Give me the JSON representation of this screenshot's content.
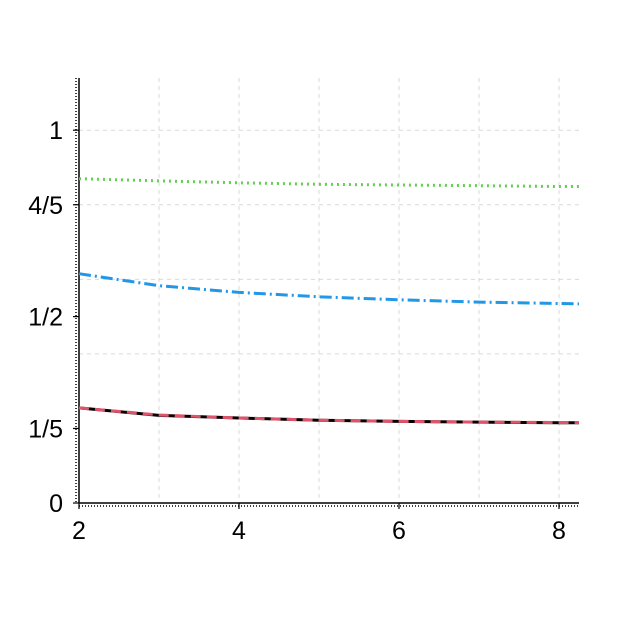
{
  "chart_data": {
    "type": "line",
    "title": "",
    "xlabel": "",
    "ylabel": "",
    "xlim": [
      2,
      8.25
    ],
    "ylim": [
      0,
      1.14
    ],
    "grid": true,
    "legend": "none",
    "x_ticks": [
      {
        "value": 2,
        "label": "2"
      },
      {
        "value": 4,
        "label": "4"
      },
      {
        "value": 6,
        "label": "6"
      },
      {
        "value": 8,
        "label": "8"
      }
    ],
    "x_grid": [
      3,
      4,
      5,
      6,
      7,
      8
    ],
    "y_ticks": [
      {
        "value": 0,
        "label": "0"
      },
      {
        "value": 0.2,
        "label": "1/5"
      },
      {
        "value": 0.5,
        "label": "1/2"
      },
      {
        "value": 0.8,
        "label": "4/5"
      },
      {
        "value": 1,
        "label": "1"
      }
    ],
    "y_grid": [
      0.4,
      0.6,
      0.8,
      1.0
    ],
    "series": [
      {
        "color": "#000000",
        "dash": "",
        "x": [
          2,
          3,
          4,
          5,
          6,
          7,
          8,
          8.25
        ],
        "y": [
          0.255,
          0.235,
          0.228,
          0.222,
          0.219,
          0.217,
          0.215,
          0.215
        ]
      },
      {
        "color": "#df536b",
        "dash": "10 6",
        "x": [
          2,
          3,
          4,
          5,
          6,
          7,
          8,
          8.25
        ],
        "y": [
          0.255,
          0.236,
          0.228,
          0.222,
          0.219,
          0.217,
          0.216,
          0.216
        ]
      },
      {
        "color": "#61d04f",
        "dash": "2 4",
        "x": [
          2,
          3,
          4,
          5,
          6,
          7,
          8,
          8.25
        ],
        "y": [
          0.87,
          0.864,
          0.859,
          0.855,
          0.853,
          0.851,
          0.849,
          0.849
        ]
      },
      {
        "color": "#2297e6",
        "dash": "12 4 2 4",
        "x": [
          2,
          3,
          4,
          5,
          6,
          7,
          8,
          8.25
        ],
        "y": [
          0.615,
          0.583,
          0.565,
          0.553,
          0.545,
          0.539,
          0.535,
          0.534
        ]
      }
    ]
  }
}
